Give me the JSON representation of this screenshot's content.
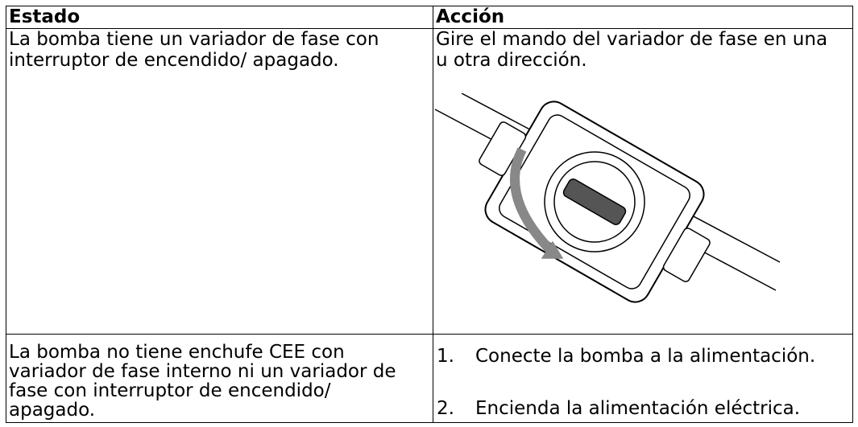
{
  "table": {
    "header": [
      "Estado",
      "Acción"
    ],
    "rows": [
      {
        "estado": "La bomba tiene un variador de fase con interruptor de encendido/ apagado.",
        "accion": [
          "Gire el mando del variador de fase en una u otra dirección."
        ]
      },
      {
        "estado": "La bomba no tiene enchufe CEE con variador de fase interno ni un variador de fase con interruptor de encendido/ apagado.",
        "steps": [
          {
            "n": "1.",
            "text": "Conecte la bomba a la alimentación."
          },
          {
            "n": "2.",
            "text": "Encienda la alimentación eléctrica."
          }
        ]
      }
    ]
  }
}
